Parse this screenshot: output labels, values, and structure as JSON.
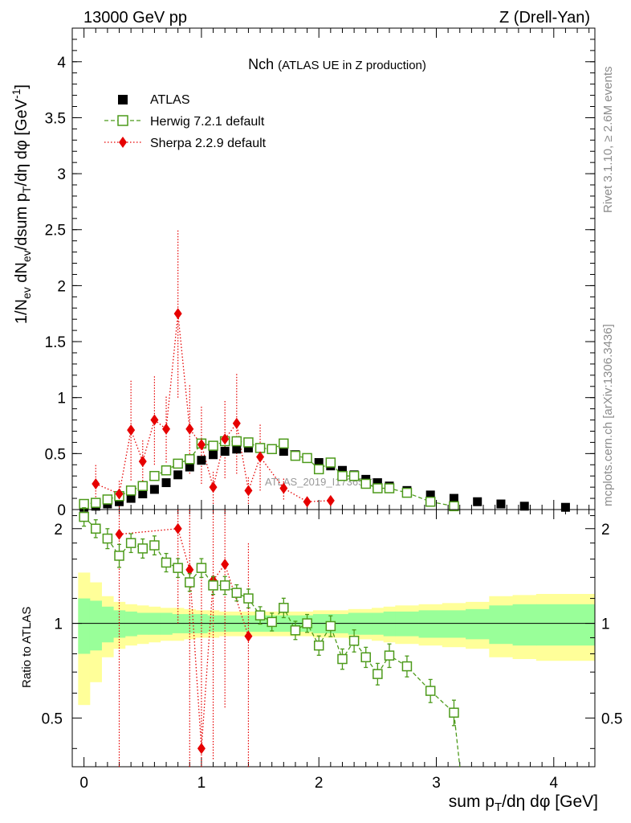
{
  "header": {
    "left": "13000 GeV pp",
    "right": "Z (Drell-Yan)"
  },
  "side_labels": {
    "rivet": "Rivet 3.1.10, ≥ 2.6M events",
    "mcplots": "mcplots.cern.ch [arXiv:1306.3436]"
  },
  "chart_data": [
    {
      "type": "scatter",
      "title": "Nch",
      "subtitle": "(ATLAS UE in Z production)",
      "watermark": "ATLAS_2019_I1736531",
      "ylabel": "1/N_ev dN_ev/dsum p_T/dη dφ [GeV^-1]",
      "xlim": [
        -0.1,
        4.35
      ],
      "ylim": [
        0,
        4.3
      ],
      "yticks": [
        "0",
        "0.5",
        "1",
        "1.5",
        "2",
        "2.5",
        "3",
        "3.5",
        "4"
      ],
      "ytick_values": [
        0,
        0.5,
        1,
        1.5,
        2,
        2.5,
        3,
        3.5,
        4
      ],
      "legend_position": "top-left",
      "series": [
        {
          "name": "ATLAS",
          "color": "#000000",
          "marker": "filled-square",
          "x": [
            0.0,
            0.1,
            0.2,
            0.3,
            0.4,
            0.5,
            0.6,
            0.7,
            0.8,
            0.9,
            1.0,
            1.1,
            1.2,
            1.3,
            1.4,
            1.5,
            1.6,
            1.7,
            1.8,
            1.9,
            2.0,
            2.1,
            2.2,
            2.3,
            2.4,
            2.5,
            2.6,
            2.75,
            2.95,
            3.15,
            3.35,
            3.55,
            3.75,
            4.1
          ],
          "y": [
            0.02,
            0.03,
            0.05,
            0.07,
            0.1,
            0.14,
            0.18,
            0.24,
            0.31,
            0.38,
            0.44,
            0.49,
            0.52,
            0.54,
            0.55,
            0.55,
            0.54,
            0.52,
            0.49,
            0.46,
            0.42,
            0.39,
            0.35,
            0.31,
            0.27,
            0.24,
            0.21,
            0.17,
            0.13,
            0.1,
            0.07,
            0.05,
            0.03,
            0.02
          ]
        },
        {
          "name": "Herwig 7.2.1 default",
          "color": "#4c9a1a",
          "marker": "open-square",
          "line": "dashed",
          "x": [
            0.0,
            0.1,
            0.2,
            0.3,
            0.4,
            0.5,
            0.6,
            0.7,
            0.8,
            0.9,
            1.0,
            1.1,
            1.2,
            1.3,
            1.4,
            1.5,
            1.6,
            1.7,
            1.8,
            1.9,
            2.0,
            2.1,
            2.2,
            2.3,
            2.4,
            2.5,
            2.6,
            2.75,
            2.95,
            3.15
          ],
          "y": [
            0.05,
            0.06,
            0.09,
            0.12,
            0.17,
            0.21,
            0.3,
            0.35,
            0.41,
            0.45,
            0.59,
            0.57,
            0.61,
            0.61,
            0.6,
            0.55,
            0.54,
            0.59,
            0.48,
            0.46,
            0.36,
            0.42,
            0.3,
            0.3,
            0.23,
            0.19,
            0.19,
            0.15,
            0.07,
            0.03
          ]
        },
        {
          "name": "Sherpa 2.2.9 default",
          "color": "#e60000",
          "marker": "filled-diamond",
          "line": "dotted",
          "x": [
            0.1,
            0.3,
            0.4,
            0.5,
            0.6,
            0.7,
            0.8,
            0.9,
            1.0,
            1.1,
            1.2,
            1.3,
            1.4,
            1.5,
            1.7,
            1.9,
            2.1
          ],
          "y": [
            0.23,
            0.14,
            0.71,
            0.43,
            0.8,
            0.72,
            1.75,
            0.72,
            0.58,
            0.2,
            0.63,
            0.77,
            0.17,
            0.47,
            0.19,
            0.07,
            0.08
          ],
          "y_err": [
            0.17,
            0.12,
            0.45,
            0.2,
            0.4,
            0.3,
            0.75,
            0.4,
            0.35,
            0.15,
            0.35,
            0.45,
            0.12,
            0.3,
            0.1,
            0.05,
            0.05
          ]
        }
      ]
    },
    {
      "type": "scatter",
      "xlabel": "sum p_T/dη dφ [GeV]",
      "ylabel": "Ratio to ATLAS",
      "xlim": [
        -0.1,
        4.35
      ],
      "ylim": [
        0.35,
        2.3
      ],
      "ylog": true,
      "xticks": [
        "0",
        "1",
        "2",
        "3",
        "4"
      ],
      "xtick_values": [
        0,
        1,
        2,
        3,
        4
      ],
      "yticks": [
        "0.5",
        "1",
        "2"
      ],
      "ytick_values": [
        0.5,
        1,
        2
      ],
      "reference_line": 1,
      "bands": {
        "inner_color": "#99ff99",
        "outer_color": "#ffff99",
        "edges": [
          -0.05,
          0.05,
          0.15,
          0.25,
          0.35,
          0.45,
          0.55,
          0.65,
          0.75,
          0.85,
          0.95,
          1.05,
          1.15,
          1.25,
          1.35,
          1.45,
          1.55,
          1.65,
          1.75,
          1.85,
          1.95,
          2.05,
          2.15,
          2.25,
          2.35,
          2.45,
          2.55,
          2.65,
          2.85,
          3.05,
          3.25,
          3.45,
          3.65,
          3.85,
          4.35
        ],
        "inner": [
          0.2,
          0.18,
          0.13,
          0.1,
          0.09,
          0.08,
          0.08,
          0.08,
          0.07,
          0.07,
          0.07,
          0.06,
          0.06,
          0.06,
          0.06,
          0.06,
          0.06,
          0.06,
          0.06,
          0.06,
          0.07,
          0.07,
          0.07,
          0.08,
          0.08,
          0.08,
          0.09,
          0.09,
          0.1,
          0.1,
          0.11,
          0.14,
          0.15,
          0.15
        ],
        "outer": [
          0.45,
          0.35,
          0.22,
          0.17,
          0.15,
          0.14,
          0.13,
          0.12,
          0.12,
          0.11,
          0.1,
          0.1,
          0.09,
          0.09,
          0.09,
          0.09,
          0.09,
          0.09,
          0.09,
          0.09,
          0.1,
          0.1,
          0.1,
          0.11,
          0.11,
          0.12,
          0.13,
          0.14,
          0.15,
          0.16,
          0.17,
          0.22,
          0.23,
          0.24
        ]
      },
      "series": [
        {
          "name": "Herwig 7.2.1 default",
          "color": "#4c9a1a",
          "x": [
            0.0,
            0.1,
            0.2,
            0.3,
            0.4,
            0.5,
            0.6,
            0.7,
            0.8,
            0.9,
            1.0,
            1.1,
            1.2,
            1.3,
            1.4,
            1.5,
            1.6,
            1.7,
            1.8,
            1.9,
            2.0,
            2.1,
            2.2,
            2.3,
            2.4,
            2.5,
            2.6,
            2.75,
            2.95,
            3.15
          ],
          "y": [
            2.18,
            2.0,
            1.86,
            1.64,
            1.8,
            1.73,
            1.77,
            1.56,
            1.5,
            1.35,
            1.5,
            1.32,
            1.32,
            1.25,
            1.2,
            1.06,
            1.01,
            1.12,
            0.95,
            1.0,
            0.85,
            0.98,
            0.77,
            0.88,
            0.78,
            0.69,
            0.79,
            0.73,
            0.61,
            0.52
          ],
          "y_err": [
            0.07,
            0.06,
            0.07,
            0.08,
            0.06,
            0.06,
            0.06,
            0.05,
            0.05,
            0.04,
            0.05,
            0.04,
            0.04,
            0.03,
            0.04,
            0.03,
            0.03,
            0.04,
            0.03,
            0.03,
            0.03,
            0.04,
            0.03,
            0.04,
            0.03,
            0.03,
            0.04,
            0.03,
            0.03,
            0.03
          ]
        },
        {
          "name": "Sherpa 2.2.9 default",
          "color": "#e60000",
          "x": [
            0.3,
            0.8,
            0.9,
            1.0,
            1.1,
            1.2,
            1.4
          ],
          "y": [
            1.92,
            2.0,
            1.48,
            0.4,
            1.37,
            1.54,
            0.91
          ],
          "y_err": [
            1.6,
            1.0,
            1.2,
            1.0,
            1.0,
            1.0,
            0.9
          ]
        }
      ]
    }
  ]
}
